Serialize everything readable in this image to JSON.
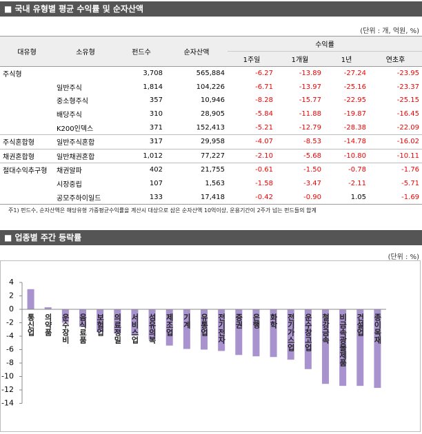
{
  "table_section": {
    "title": "■ 국내 유형별 평균 수익률 및 순자산액",
    "unit": "(단위 : 개, 억원, %)",
    "header": [
      "대유형",
      "소유형",
      "펀드수",
      "순자산액",
      "수익률"
    ],
    "subheader": [
      "1주일",
      "1개월",
      "1년",
      "연초후"
    ],
    "rows": [
      [
        "주식형",
        null,
        "3,708",
        "565,884",
        "-6.27",
        "-13.89",
        "-27.24",
        "-23.95"
      ],
      [
        null,
        "일반주식",
        "1,814",
        "104,226",
        "-6.71",
        "-13.97",
        "-25.16",
        "-23.37"
      ],
      [
        null,
        "중소형주식",
        "357",
        "10,946",
        "-8.28",
        "-15.77",
        "-22.95",
        "-25.15"
      ],
      [
        null,
        "배당주식",
        "310",
        "28,905",
        "-5.84",
        "-11.88",
        "-19.87",
        "-16.45"
      ],
      [
        null,
        "K200인덱스",
        "371",
        "152,413",
        "-5.21",
        "-12.79",
        "-28.38",
        "-22.09"
      ],
      [
        "주식혼합형",
        "일반주식혼합",
        "317",
        "29,958",
        "-4.07",
        "-8.53",
        "-14.78",
        "-16.02"
      ],
      [
        "채권혼합형",
        "일반채권혼합",
        "1,012",
        "77,227",
        "-2.10",
        "-5.68",
        "-10.80",
        "-10.11"
      ],
      [
        "절대수익추구형",
        "채권알파",
        "402",
        "21,755",
        "-0.61",
        "-1.50",
        "-0.78",
        "-1.76"
      ],
      [
        null,
        "시장중립",
        "107",
        "1,563",
        "-1.58",
        "-3.47",
        "-2.11",
        "-5.71"
      ],
      [
        null,
        "공모주하이일드",
        "133",
        "17,418",
        "-0.42",
        "-0.90",
        "1.05",
        "-1.69"
      ]
    ],
    "note": "주1) 펀드수, 순자산액은 해당유형 가중평균수익률을 계산시 대상으로 삼은 순자산액 10억이상, 운용기간이 2주가 넘는 펀드들의 합계"
  },
  "chart_data": {
    "type": "bar",
    "title": "■ 업종별 주간 등락률",
    "unit": "(단위 : %)",
    "categories": [
      "통신업",
      "의약품",
      "운수장비",
      "음식료품",
      "보험업",
      "의료정밀",
      "서비스업",
      "섬유의복",
      "제조업",
      "기계",
      "유통업",
      "전기전자",
      "증권",
      "은행",
      "화학",
      "전기가스업",
      "운수창고업",
      "철강금속",
      "비금속광물제품",
      "건설업",
      "종이목재"
    ],
    "values": [
      3.0,
      0.3,
      -2.0,
      -2.6,
      -3.4,
      -3.6,
      -3.9,
      -4.5,
      -5.4,
      -5.9,
      -6.0,
      -6.2,
      -6.8,
      -7.0,
      -7.1,
      -7.5,
      -8.9,
      -11.1,
      -11.4,
      -11.4,
      -11.7
    ],
    "color": "#a993cf",
    "ylim": [
      -14,
      4
    ],
    "yticks": [
      4,
      2,
      0,
      -2,
      -4,
      -6,
      -8,
      -10,
      -12,
      -14
    ]
  }
}
